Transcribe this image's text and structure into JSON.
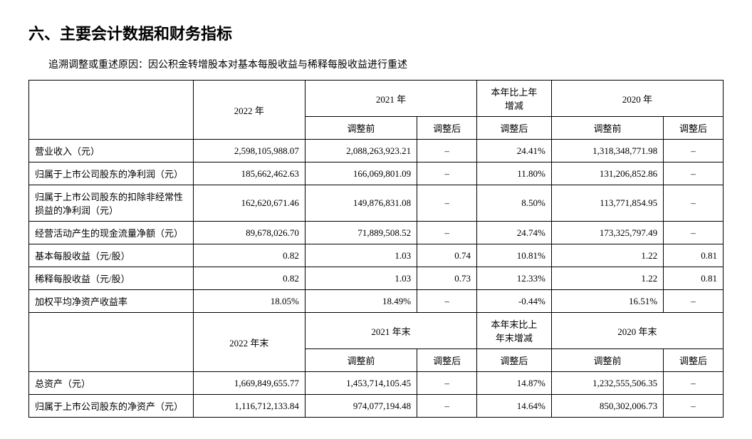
{
  "section_title": "六、主要会计数据和财务指标",
  "restatement_note": "追溯调整或重述原因：因公积金转增股本对基本每股收益与稀释每股收益进行重述",
  "headers": {
    "y2022": "2022 年",
    "y2021": "2021 年",
    "yoy": "本年比上年\n增减",
    "y2020": "2020 年",
    "before": "调整前",
    "after": "调整后",
    "y2022_end": "2022 年末",
    "y2021_end": "2021 年末",
    "yoy_end": "本年末比上\n年末增减",
    "y2020_end": "2020 年末"
  },
  "top_rows": [
    {
      "label": "营业收入（元）",
      "v2022": "2,598,105,988.07",
      "v2021_pre": "2,088,263,923.21",
      "v2021_post": "–",
      "chg": "24.41%",
      "v2020_pre": "1,318,348,771.98",
      "v2020_post": "–"
    },
    {
      "label": "归属于上市公司股东的净利润（元）",
      "v2022": "185,662,462.63",
      "v2021_pre": "166,069,801.09",
      "v2021_post": "–",
      "chg": "11.80%",
      "v2020_pre": "131,206,852.86",
      "v2020_post": "–"
    },
    {
      "label": "归属于上市公司股东的扣除非经常性损益的净利润（元）",
      "v2022": "162,620,671.46",
      "v2021_pre": "149,876,831.08",
      "v2021_post": "–",
      "chg": "8.50%",
      "v2020_pre": "113,771,854.95",
      "v2020_post": "–"
    },
    {
      "label": "经营活动产生的现金流量净额（元）",
      "v2022": "89,678,026.70",
      "v2021_pre": "71,889,508.52",
      "v2021_post": "–",
      "chg": "24.74%",
      "v2020_pre": "173,325,797.49",
      "v2020_post": "–"
    },
    {
      "label": "基本每股收益（元/股）",
      "v2022": "0.82",
      "v2021_pre": "1.03",
      "v2021_post": "0.74",
      "chg": "10.81%",
      "v2020_pre": "1.22",
      "v2020_post": "0.81"
    },
    {
      "label": "稀释每股收益（元/股）",
      "v2022": "0.82",
      "v2021_pre": "1.03",
      "v2021_post": "0.73",
      "chg": "12.33%",
      "v2020_pre": "1.22",
      "v2020_post": "0.81"
    },
    {
      "label": "加权平均净资产收益率",
      "v2022": "18.05%",
      "v2021_pre": "18.49%",
      "v2021_post": "–",
      "chg": "-0.44%",
      "v2020_pre": "16.51%",
      "v2020_post": "–"
    }
  ],
  "bottom_rows": [
    {
      "label": "总资产（元）",
      "v2022": "1,669,849,655.77",
      "v2021_pre": "1,453,714,105.45",
      "v2021_post": "–",
      "chg": "14.87%",
      "v2020_pre": "1,232,555,506.35",
      "v2020_post": "–"
    },
    {
      "label": "归属于上市公司股东的净资产（元）",
      "v2022": "1,116,712,133.84",
      "v2021_pre": "974,077,194.48",
      "v2021_post": "–",
      "chg": "14.64%",
      "v2020_pre": "850,302,006.73",
      "v2020_post": "–"
    }
  ]
}
